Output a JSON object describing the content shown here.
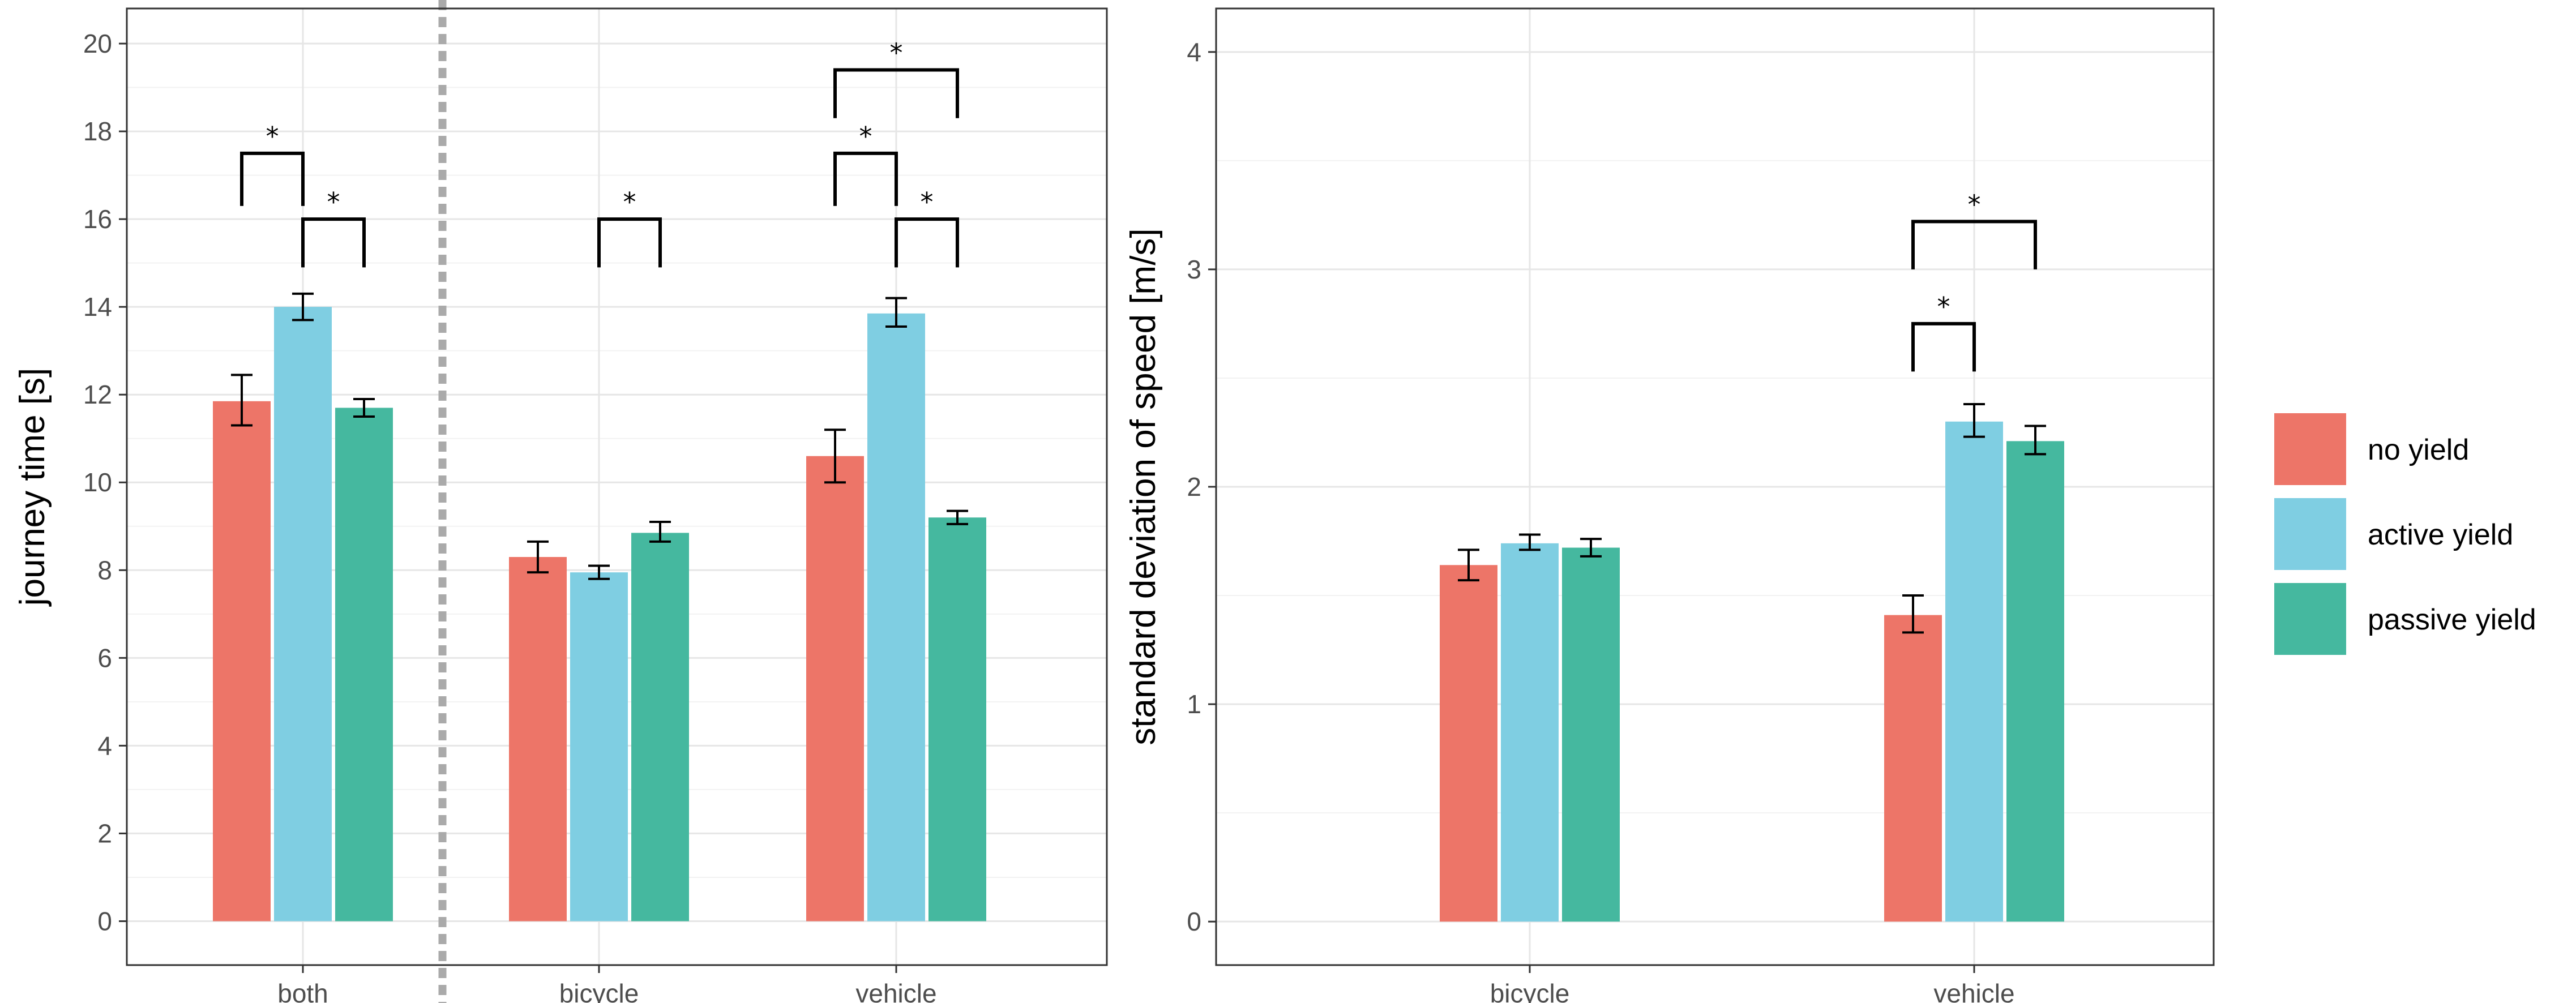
{
  "colors": {
    "no_yield": "#ED7568",
    "active_yield": "#7FCEE2",
    "passive_yield": "#45B89F",
    "grid_major": "#e6e6e6",
    "grid_minor": "#f2f2f2",
    "panel_border": "#333333",
    "divider": "#aaaaaa"
  },
  "legend": {
    "items": [
      {
        "key": "no_yield",
        "label": "no yield"
      },
      {
        "key": "active_yield",
        "label": "active yield"
      },
      {
        "key": "passive_yield",
        "label": "passive yield"
      }
    ]
  },
  "chart_data": [
    {
      "type": "bar",
      "ylabel": "journey time [s]",
      "xlabel": "",
      "ylim": [
        -1.0,
        20.8
      ],
      "yticks": [
        0,
        2,
        4,
        6,
        8,
        10,
        12,
        14,
        16,
        18,
        20
      ],
      "ytick_labels": [
        "0",
        "2",
        "4",
        "6",
        "8",
        "10",
        "12",
        "14",
        "16",
        "18",
        "20"
      ],
      "categories": [
        "both",
        "bicycle",
        "vehicle"
      ],
      "divider_after_category": 0,
      "series": [
        {
          "key": "no_yield",
          "name": "no yield",
          "values": [
            11.85,
            8.3,
            10.6
          ],
          "err_low": [
            11.3,
            7.95,
            10.0
          ],
          "err_high": [
            12.45,
            8.65,
            11.2
          ]
        },
        {
          "key": "active_yield",
          "name": "active yield",
          "values": [
            14.0,
            7.95,
            13.85
          ],
          "err_low": [
            13.7,
            7.8,
            13.55
          ],
          "err_high": [
            14.3,
            8.1,
            14.2
          ]
        },
        {
          "key": "passive_yield",
          "name": "passive yield",
          "values": [
            11.7,
            8.85,
            9.2
          ],
          "err_low": [
            11.5,
            8.65,
            9.05
          ],
          "err_high": [
            11.9,
            9.1,
            9.35
          ]
        }
      ],
      "significance": [
        {
          "category": 0,
          "from": 0,
          "to": 1,
          "y": 17.5,
          "drop": 1.2,
          "label": "*"
        },
        {
          "category": 0,
          "from": 1,
          "to": 2,
          "y": 16.0,
          "drop": 1.1,
          "label": "*"
        },
        {
          "category": 1,
          "from": 1,
          "to": 2,
          "y": 16.0,
          "drop": 1.1,
          "label": "*"
        },
        {
          "category": 2,
          "from": 0,
          "to": 1,
          "y": 17.5,
          "drop": 1.2,
          "label": "*"
        },
        {
          "category": 2,
          "from": 1,
          "to": 2,
          "y": 16.0,
          "drop": 1.1,
          "label": "*"
        },
        {
          "category": 2,
          "from": 0,
          "to": 2,
          "y": 19.4,
          "drop": 1.1,
          "label": "*"
        }
      ]
    },
    {
      "type": "bar",
      "ylabel": "standard deviation of speed [m/s]",
      "xlabel": "",
      "ylim": [
        -0.2,
        4.2
      ],
      "yticks": [
        0,
        1,
        2,
        3,
        4
      ],
      "ytick_labels": [
        "0",
        "1",
        "2",
        "3",
        "4"
      ],
      "categories": [
        "bicycle",
        "vehicle"
      ],
      "series": [
        {
          "key": "no_yield",
          "name": "no yield",
          "values": [
            1.64,
            1.41
          ],
          "err_low": [
            1.57,
            1.33
          ],
          "err_high": [
            1.71,
            1.5
          ]
        },
        {
          "key": "active_yield",
          "name": "active yield",
          "values": [
            1.74,
            2.3
          ],
          "err_low": [
            1.71,
            2.23
          ],
          "err_high": [
            1.78,
            2.38
          ]
        },
        {
          "key": "passive_yield",
          "name": "passive yield",
          "values": [
            1.72,
            2.21
          ],
          "err_low": [
            1.68,
            2.15
          ],
          "err_high": [
            1.76,
            2.28
          ]
        }
      ],
      "significance": [
        {
          "category": 1,
          "from": 0,
          "to": 1,
          "y": 2.75,
          "drop": 0.22,
          "label": "*"
        },
        {
          "category": 1,
          "from": 0,
          "to": 2,
          "y": 3.22,
          "drop": 0.22,
          "label": "*"
        }
      ]
    }
  ]
}
